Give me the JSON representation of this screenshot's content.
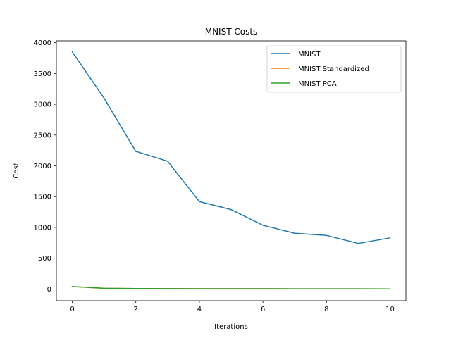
{
  "chart_data": {
    "type": "line",
    "title": "MNIST Costs",
    "xlabel": "Iterations",
    "ylabel": "Cost",
    "xlim": [
      -0.5,
      10.5
    ],
    "ylim": [
      -190,
      4030
    ],
    "xticks": [
      0,
      2,
      4,
      6,
      8,
      10
    ],
    "yticks": [
      0,
      500,
      1000,
      1500,
      2000,
      2500,
      3000,
      3500,
      4000
    ],
    "grid": false,
    "legend_position": "top-right",
    "x": [
      0,
      1,
      2,
      3,
      4,
      5,
      6,
      7,
      8,
      9,
      10
    ],
    "series": [
      {
        "name": "MNIST",
        "color": "#1f77b4",
        "values": [
          3850,
          3100,
          2235,
          2075,
          1420,
          1290,
          1035,
          905,
          870,
          740,
          830
        ]
      },
      {
        "name": "MNIST Standardized",
        "color": "#ff7f0e",
        "values": [
          40,
          12,
          8,
          6,
          5,
          4,
          4,
          3,
          3,
          3,
          2
        ]
      },
      {
        "name": "MNIST PCA",
        "color": "#2ca02c",
        "values": [
          40,
          12,
          8,
          6,
          5,
          4,
          4,
          3,
          3,
          3,
          2
        ]
      }
    ]
  }
}
